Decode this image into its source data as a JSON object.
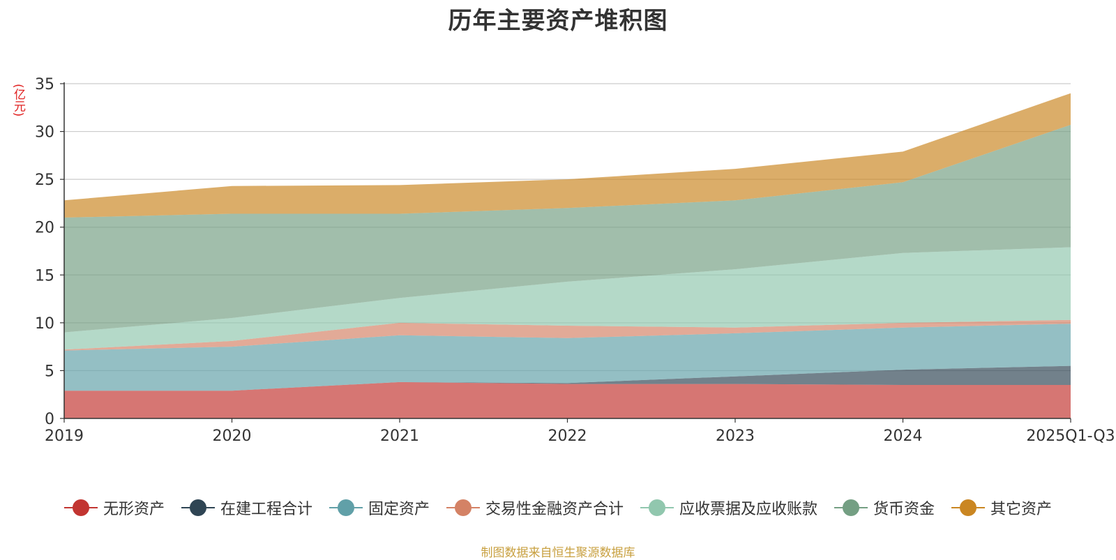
{
  "chart_data": {
    "type": "area",
    "stacked": true,
    "title": "历年主要资产堆积图",
    "ylabel": "(亿元)",
    "xlabel": "",
    "ylim": [
      0,
      35
    ],
    "yticks": [
      0,
      5,
      10,
      15,
      20,
      25,
      30,
      35
    ],
    "grid": true,
    "legend_position": "bottom",
    "categories": [
      "2019",
      "2020",
      "2021",
      "2022",
      "2023",
      "2024",
      "2025Q1-Q3"
    ],
    "series": [
      {
        "name": "无形资产",
        "color": "#c23531",
        "values": [
          2.9,
          2.9,
          3.8,
          3.6,
          3.6,
          3.5,
          3.5
        ]
      },
      {
        "name": "在建工程合计",
        "color": "#2f4554",
        "values": [
          0.0,
          0.0,
          0.0,
          0.1,
          0.8,
          1.6,
          2.0
        ]
      },
      {
        "name": "固定资产",
        "color": "#61a0a8",
        "values": [
          4.2,
          4.6,
          4.9,
          4.7,
          4.5,
          4.4,
          4.4
        ]
      },
      {
        "name": "交易性金融资产合计",
        "color": "#d48265",
        "values": [
          0.1,
          0.6,
          1.3,
          1.3,
          0.6,
          0.5,
          0.4
        ]
      },
      {
        "name": "应收票据及应收账款",
        "color": "#91c7ae",
        "values": [
          1.8,
          2.4,
          2.6,
          4.6,
          6.1,
          7.3,
          7.6
        ]
      },
      {
        "name": "货币资金",
        "color": "#749f83",
        "values": [
          12.0,
          10.9,
          8.8,
          7.7,
          7.2,
          7.4,
          12.8
        ]
      },
      {
        "name": "其它资产",
        "color": "#ca8622",
        "values": [
          1.8,
          2.9,
          3.0,
          3.0,
          3.3,
          3.2,
          3.3
        ]
      }
    ]
  },
  "source_text": "制图数据来自恒生聚源数据库",
  "source_color": "#c8a040"
}
